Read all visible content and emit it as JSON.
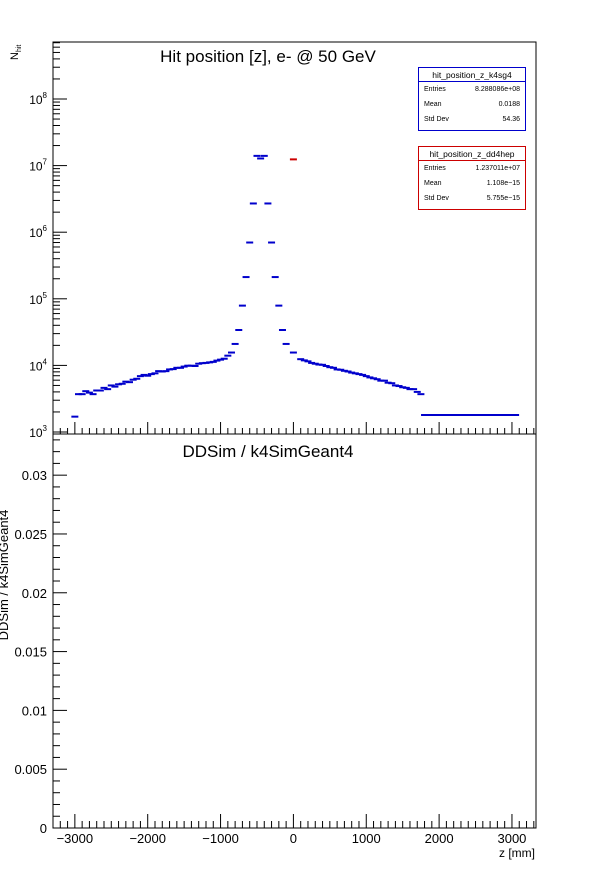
{
  "colors": {
    "k4sg4": "#0000cc",
    "dd4hep": "#cc0000",
    "frame": "#000000",
    "background": "#ffffff"
  },
  "top_panel": {
    "title": "Hit position [z],  e- @ 50 GeV",
    "ylabel": "N",
    "ylabel_sub": "hit",
    "y_scale": "log",
    "y_tick_labels": [
      "10^3",
      "10^4",
      "10^5",
      "10^6",
      "10^7",
      "10^8"
    ],
    "stats_k4sg4": {
      "title": "hit_position_z_k4sg4",
      "rows": [
        {
          "label": "Entries",
          "value": "8.288086e+08"
        },
        {
          "label": "Mean",
          "value": "0.0188"
        },
        {
          "label": "Std Dev",
          "value": "54.36"
        }
      ]
    },
    "stats_dd4hep": {
      "title": "hit_position_z_dd4hep",
      "rows": [
        {
          "label": "Entries",
          "value": "1.237011e+07"
        },
        {
          "label": "Mean",
          "value": "1.108e−15"
        },
        {
          "label": "Std Dev",
          "value": "5.755e−15"
        }
      ]
    }
  },
  "bottom_panel": {
    "title": "DDSim / k4SimGeant4",
    "ylabel": "DDSim / k4SimGeant4",
    "xlabel": "z [mm]",
    "y_tick_labels": [
      "0",
      "0.005",
      "0.01",
      "0.015",
      "0.02",
      "0.025",
      "0.03"
    ],
    "x_tick_labels": [
      "−3000",
      "−2000",
      "−1000",
      "0",
      "1000",
      "2000",
      "3000"
    ]
  },
  "chart_data": [
    {
      "type": "scatter",
      "title": "Hit position [z],  e- @ 50 GeV",
      "xlabel": "",
      "ylabel": "N_hit",
      "xlim": [
        -3300,
        3330
      ],
      "ylim": [
        1000,
        800000000
      ],
      "y_log": true,
      "series": [
        {
          "name": "hit_position_z_k4sg4",
          "color": "#0000cc",
          "x": [
            -3000,
            -2950,
            -2900,
            -2850,
            -2800,
            -2750,
            -2700,
            -2650,
            -2600,
            -2550,
            -2500,
            -2450,
            -2400,
            -2350,
            -2300,
            -2250,
            -2200,
            -2150,
            -2100,
            -2050,
            -2000,
            -1950,
            -1900,
            -1850,
            -1800,
            -1750,
            -1700,
            -1650,
            -1600,
            -1550,
            -1500,
            -1450,
            -1400,
            -1350,
            -1300,
            -1250,
            -1200,
            -1150,
            -1100,
            -1050,
            -1000,
            -950,
            -900,
            -850,
            -800,
            -750,
            -700,
            -650,
            -600,
            -550,
            -500,
            -450,
            -400,
            -350,
            -300,
            -250,
            -200,
            -150,
            -100,
            0,
            100,
            150,
            200,
            250,
            300,
            350,
            400,
            450,
            500,
            550,
            600,
            650,
            700,
            750,
            800,
            850,
            900,
            950,
            1000,
            1050,
            1100,
            1150,
            1200,
            1250,
            1300,
            1350,
            1400,
            1450,
            1500,
            1550,
            1600,
            1650,
            1700,
            1750,
            1800,
            1850,
            1900,
            1950,
            2000,
            2050,
            2100,
            2150,
            2200,
            2250,
            2300,
            2350,
            2400,
            2450,
            2500,
            2550,
            2600,
            2650,
            2700,
            2750,
            2800,
            2850,
            2900,
            2950,
            3000,
            3050
          ],
          "y": [
            1700,
            3700,
            3700,
            4100,
            3900,
            3700,
            4200,
            4200,
            4600,
            4400,
            5000,
            4800,
            5200,
            5300,
            5700,
            5600,
            6100,
            6300,
            6900,
            7200,
            7000,
            7400,
            7600,
            8200,
            8100,
            8200,
            8700,
            8800,
            9200,
            9200,
            9600,
            9900,
            9900,
            9800,
            10600,
            10800,
            10900,
            11100,
            11300,
            11800,
            12200,
            12600,
            14000,
            15600,
            21000,
            34000,
            79000,
            212000,
            700000,
            2700000,
            14000000,
            12800000,
            14000000,
            2700000,
            700000,
            212000,
            79000,
            34000,
            21000,
            15600,
            12400,
            11900,
            11500,
            10900,
            10600,
            10300,
            10200,
            9800,
            9400,
            9200,
            8700,
            8600,
            8300,
            8100,
            7800,
            7600,
            7400,
            7200,
            6900,
            6600,
            6400,
            6200,
            5900,
            5900,
            5500,
            5400,
            5000,
            4900,
            4700,
            4600,
            4400,
            4400,
            4000,
            3700,
            1800,
            1800,
            1800,
            1800,
            1800,
            1800,
            1800,
            1800,
            1800,
            1800,
            1800,
            1800,
            1800,
            1800,
            1800,
            1800,
            1800,
            1800,
            1800,
            1800,
            1800,
            1800,
            1800,
            1800,
            1800,
            1800
          ]
        },
        {
          "name": "hit_position_z_dd4hep",
          "color": "#cc0000",
          "x": [
            0
          ],
          "y": [
            12400000
          ]
        }
      ]
    },
    {
      "type": "scatter",
      "title": "DDSim / k4SimGeant4",
      "xlabel": "z [mm]",
      "ylabel": "DDSim / k4SimGeant4",
      "xlim": [
        -3300,
        3330
      ],
      "ylim": [
        0,
        0.0335
      ],
      "series": []
    }
  ]
}
